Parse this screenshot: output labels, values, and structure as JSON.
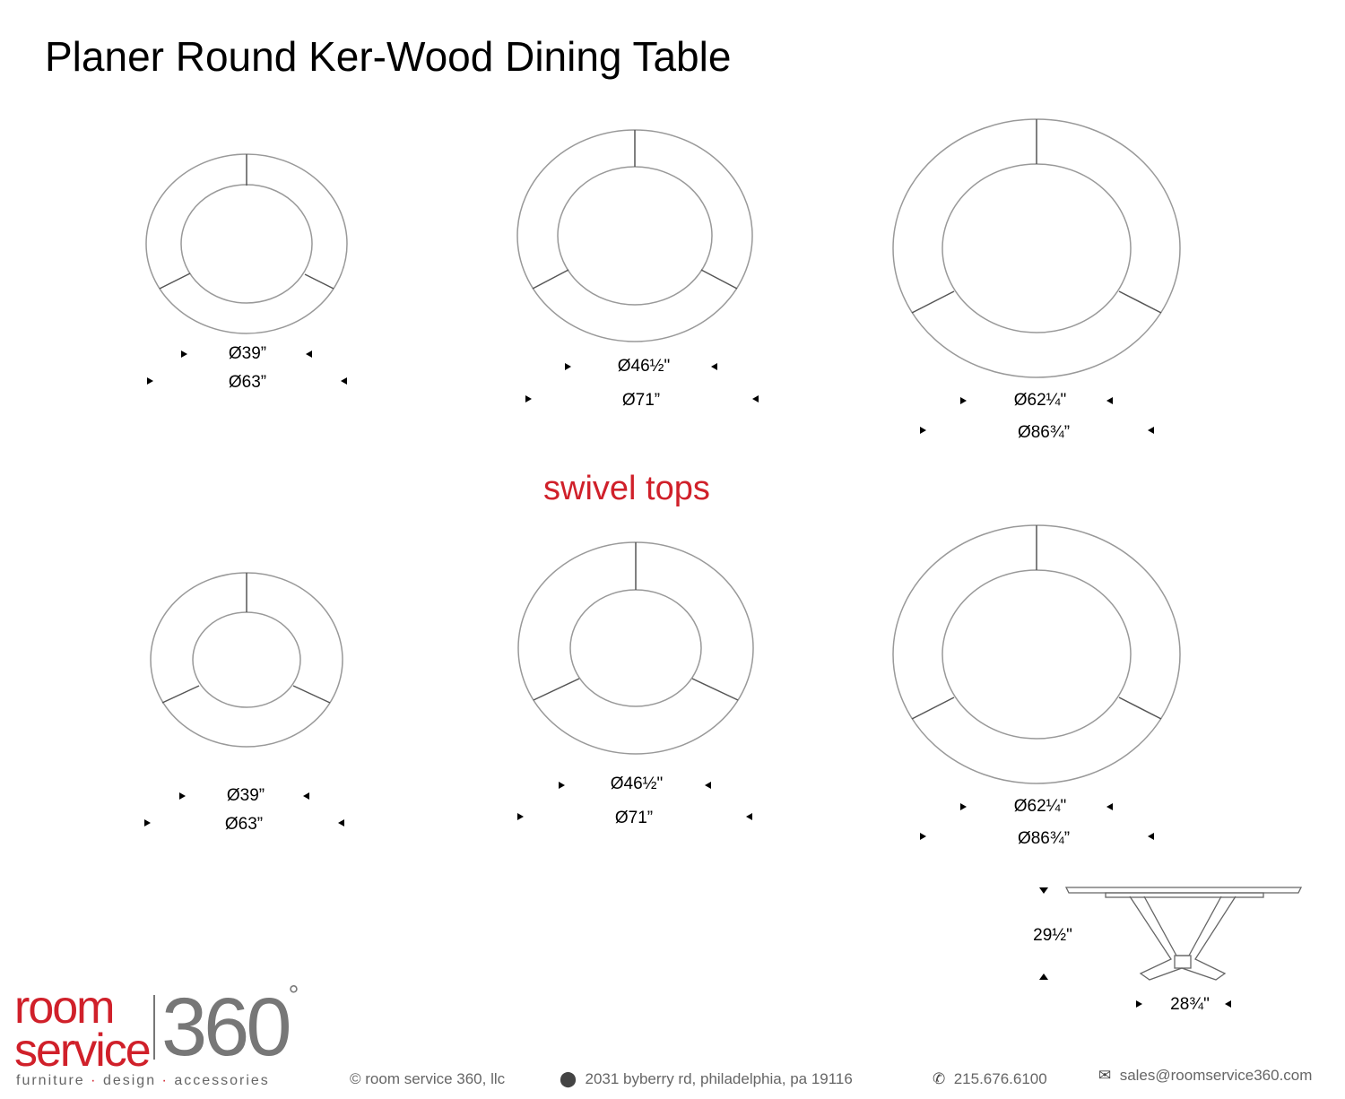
{
  "title": "Planer Round Ker-Wood Dining Table",
  "section_label": "swivel tops",
  "fixed_tops": [
    {
      "inner": "Ø39”",
      "outer": "Ø63”"
    },
    {
      "inner": "Ø46½\"",
      "outer": "Ø71”"
    },
    {
      "inner": "Ø62¼\"",
      "outer": "Ø86¾”"
    }
  ],
  "swivel_tops": [
    {
      "inner": "Ø39”",
      "outer": "Ø63”"
    },
    {
      "inner": "Ø46½\"",
      "outer": "Ø71”"
    },
    {
      "inner": "Ø62¼\"",
      "outer": "Ø86¾”"
    }
  ],
  "side_view": {
    "height": "29½\"",
    "base_width": "28¾\""
  },
  "logo": {
    "line1": "room",
    "line2": "service",
    "number": "360",
    "degree": "°"
  },
  "footer": {
    "tagline": [
      "furniture",
      "design",
      "accessories"
    ],
    "copyright": "© room service 360, llc",
    "address": "2031 byberry rd, philadelphia, pa 19116",
    "phone": "215.676.6100",
    "email": "sales@roomservice360.com",
    "accent_color": "#d0202a"
  }
}
